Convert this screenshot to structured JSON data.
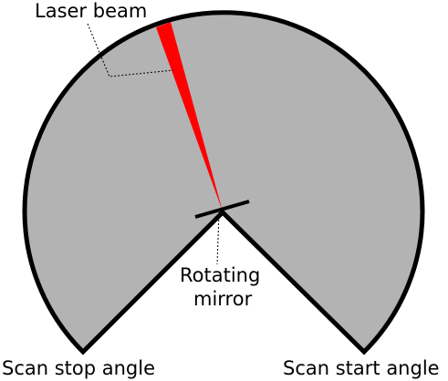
{
  "diagram": {
    "labels": {
      "laser_beam": "Laser beam",
      "rotating_mirror_line1": "Rotating",
      "rotating_mirror_line2": "mirror",
      "scan_stop_angle": "Scan stop angle",
      "scan_start_angle": "Scan start angle"
    },
    "colors": {
      "sector_fill": "#b3b3b3",
      "outline": "#000000",
      "laser": "#ff0000",
      "background": "#ffffff"
    }
  }
}
